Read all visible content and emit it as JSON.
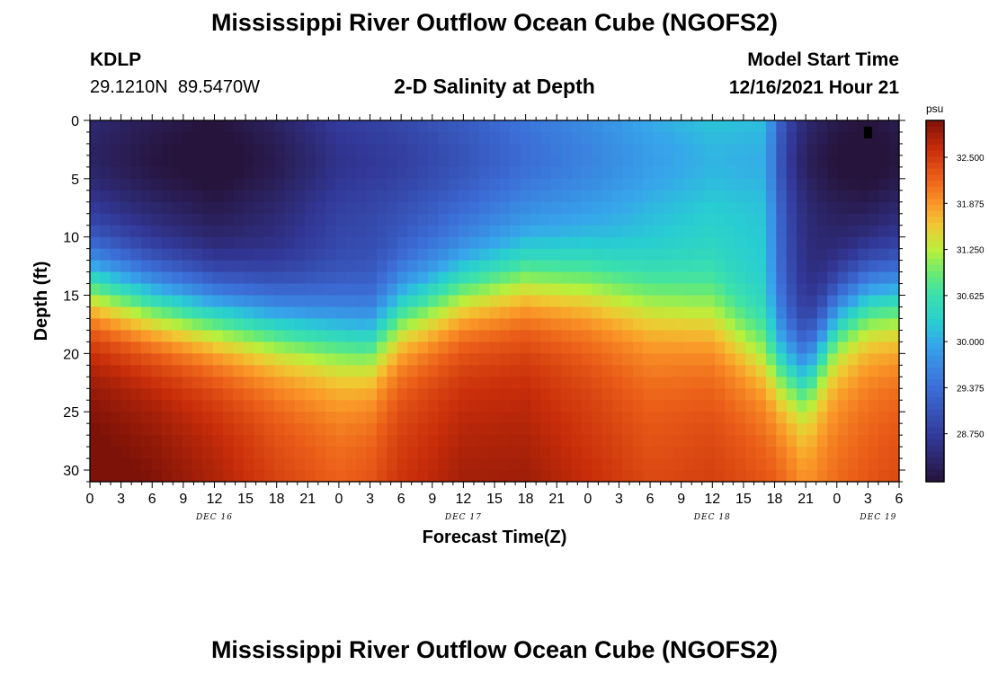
{
  "header": {
    "title": "Mississippi River Outflow Ocean Cube (NGOFS2)",
    "station_id": "KDLP",
    "coordinates": "29.1210N  89.5470W",
    "subtitle": "2-D Salinity at Depth",
    "model_start_label": "Model Start Time",
    "model_start_value": "12/16/2021 Hour 21"
  },
  "footer": {
    "title": "Mississippi River Outflow Ocean Cube (NGOFS2)"
  },
  "chart_data": {
    "type": "heatmap",
    "title": "2-D Salinity at Depth",
    "xlabel": "Forecast Time(Z)",
    "ylabel": "Depth (ft)",
    "x_hours_range": [
      0,
      78
    ],
    "y_range": [
      0,
      31
    ],
    "y_reversed": true,
    "x_tick_labels": [
      "0",
      "3",
      "6",
      "9",
      "12",
      "15",
      "18",
      "21",
      "0",
      "3",
      "6",
      "9",
      "12",
      "15",
      "18",
      "21",
      "0",
      "3",
      "6",
      "9",
      "12",
      "15",
      "18",
      "21",
      "0",
      "3",
      "6"
    ],
    "y_ticks": [
      0,
      5,
      10,
      15,
      20,
      25,
      30
    ],
    "day_labels": [
      "DEC 16",
      "DEC 17",
      "DEC 18",
      "DEC 19"
    ],
    "colorbar": {
      "unit": "psu",
      "ticks": [
        "32.500",
        "31.875",
        "31.250",
        "30.625",
        "30.000",
        "29.375",
        "28.750"
      ],
      "range": [
        28.1,
        33.0
      ]
    },
    "marker": {
      "x_hour": 75,
      "depth": 1
    },
    "halocline_depth_vs_hour": [
      [
        0,
        14
      ],
      [
        6,
        15.5
      ],
      [
        12,
        16.5
      ],
      [
        18,
        17.5
      ],
      [
        24,
        18.5
      ],
      [
        27,
        19
      ],
      [
        30,
        16.5
      ],
      [
        33,
        15.5
      ],
      [
        36,
        14.5
      ],
      [
        42,
        13.5
      ],
      [
        48,
        14
      ],
      [
        54,
        15.5
      ],
      [
        60,
        16.5
      ],
      [
        66,
        21
      ],
      [
        69,
        22
      ],
      [
        72,
        17
      ],
      [
        75,
        15
      ],
      [
        78,
        15
      ]
    ],
    "surface_salinity_vs_hour": [
      [
        0,
        28.5
      ],
      [
        6,
        28.3
      ],
      [
        12,
        28.15
      ],
      [
        18,
        28.4
      ],
      [
        24,
        28.8
      ],
      [
        30,
        28.95
      ],
      [
        36,
        29.2
      ],
      [
        42,
        29.5
      ],
      [
        48,
        29.75
      ],
      [
        54,
        30.05
      ],
      [
        60,
        30.25
      ],
      [
        65,
        30.2
      ],
      [
        66,
        29.6
      ],
      [
        67,
        29.0
      ],
      [
        69,
        28.5
      ],
      [
        72,
        28.25
      ],
      [
        75,
        28.15
      ],
      [
        78,
        28.3
      ]
    ],
    "bottom_salinity_vs_hour": [
      [
        0,
        32.9
      ],
      [
        6,
        32.8
      ],
      [
        12,
        32.6
      ],
      [
        18,
        32.3
      ],
      [
        24,
        32.1
      ],
      [
        27,
        32.2
      ],
      [
        30,
        32.4
      ],
      [
        36,
        32.6
      ],
      [
        42,
        32.6
      ],
      [
        48,
        32.4
      ],
      [
        54,
        32.2
      ],
      [
        60,
        32.3
      ],
      [
        66,
        32.2
      ],
      [
        69,
        31.9
      ],
      [
        72,
        32.0
      ],
      [
        78,
        32.2
      ]
    ]
  }
}
